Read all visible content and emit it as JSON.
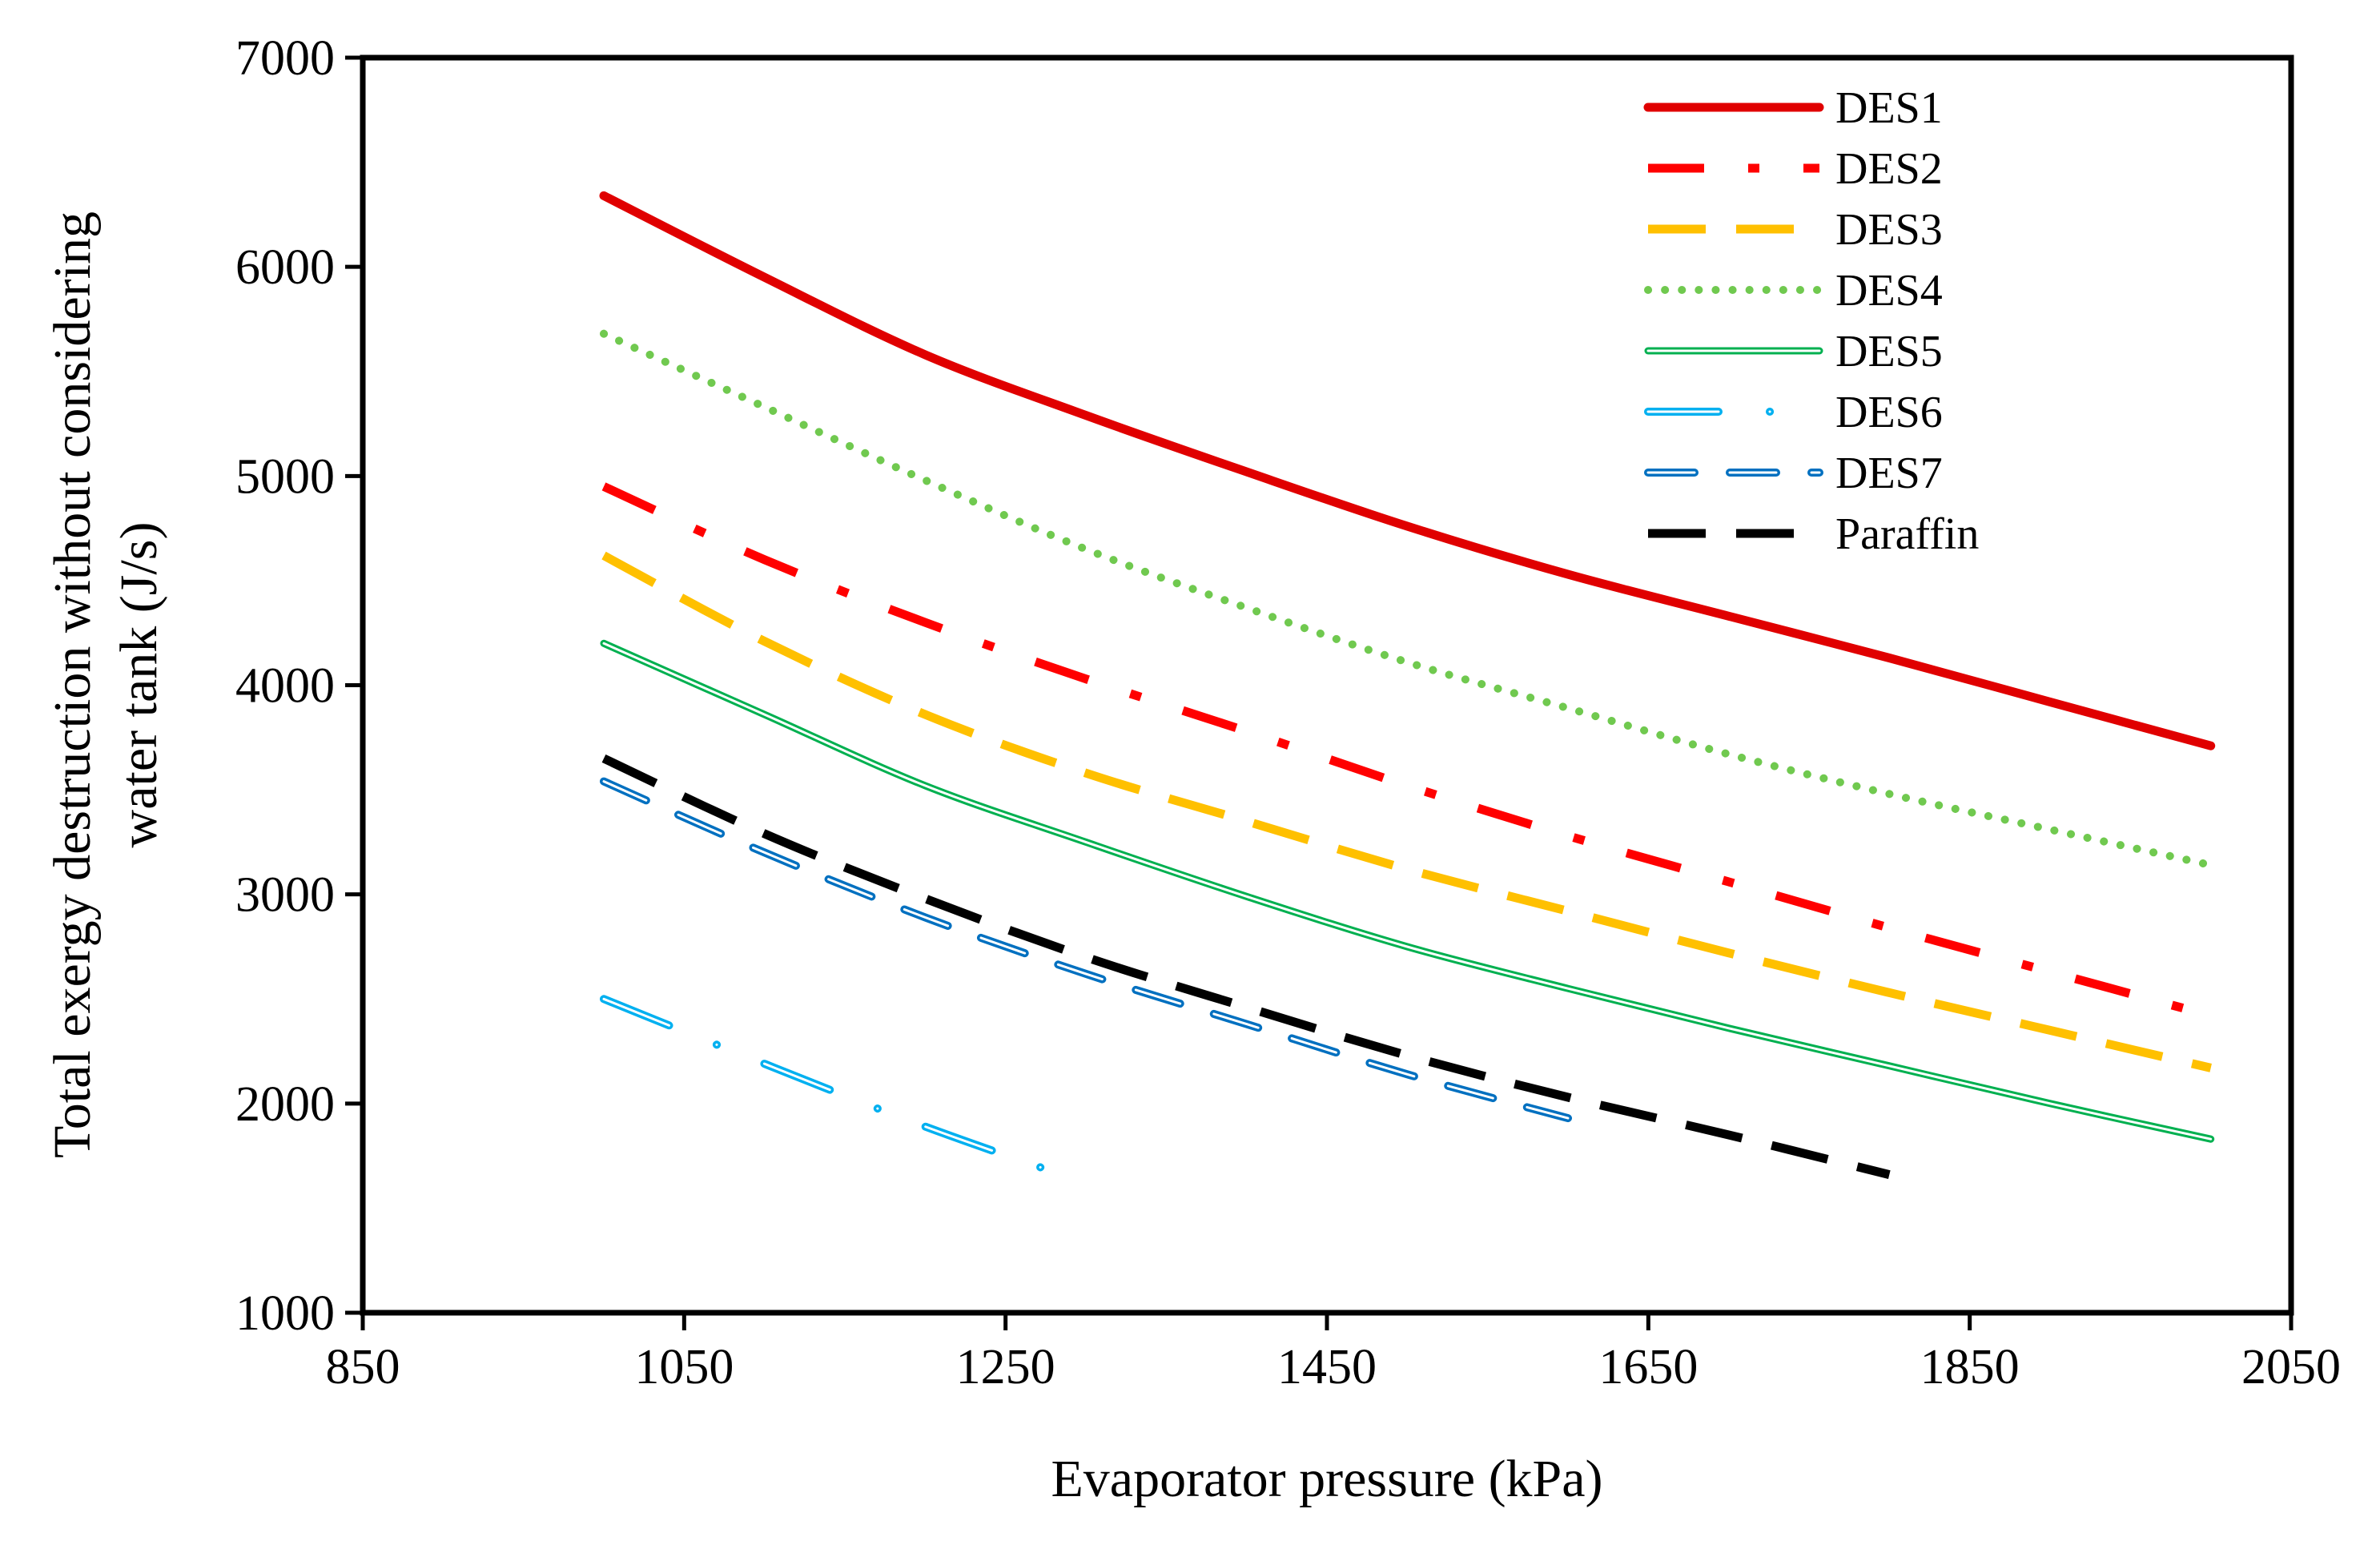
{
  "chart_data": {
    "type": "line",
    "title": "",
    "xlabel": "Evaporator pressure (kPa)",
    "ylabel_lines": [
      "Total exergy destruction without considering",
      "water tank (J/s)"
    ],
    "xlim": [
      850,
      2050
    ],
    "ylim": [
      1000,
      7000
    ],
    "xticks": [
      850,
      1050,
      1250,
      1450,
      1650,
      1850,
      2050
    ],
    "yticks": [
      1000,
      2000,
      3000,
      4000,
      5000,
      6000,
      7000
    ],
    "grid": false,
    "legend_position": "top-right",
    "series": [
      {
        "name": "DES1",
        "color": "#e00000",
        "style": "solid-thick",
        "x": [
          1000,
          1100,
          1200,
          1300,
          1400,
          1500,
          1600,
          1700,
          1800,
          1900,
          2000
        ],
        "y": [
          6340,
          5950,
          5580,
          5290,
          5020,
          4760,
          4530,
          4330,
          4130,
          3920,
          3710
        ]
      },
      {
        "name": "DES2",
        "color": "#ff0000",
        "style": "dash-dot",
        "x": [
          1000,
          1100,
          1200,
          1300,
          1400,
          1500,
          1600,
          1700,
          1800,
          1900,
          2000
        ],
        "y": [
          4950,
          4600,
          4300,
          4030,
          3780,
          3520,
          3280,
          3060,
          2840,
          2630,
          2420
        ]
      },
      {
        "name": "DES3",
        "color": "#ffc000",
        "style": "dash",
        "x": [
          1000,
          1100,
          1200,
          1300,
          1400,
          1500,
          1600,
          1700,
          1800,
          1900,
          2000
        ],
        "y": [
          4620,
          4210,
          3860,
          3580,
          3350,
          3120,
          2920,
          2720,
          2530,
          2350,
          2170
        ]
      },
      {
        "name": "DES4",
        "color": "#70c94f",
        "style": "dot",
        "x": [
          1000,
          1100,
          1200,
          1300,
          1400,
          1500,
          1600,
          1700,
          1800,
          1900,
          2000
        ],
        "y": [
          5680,
          5330,
          4980,
          4650,
          4370,
          4110,
          3890,
          3670,
          3480,
          3310,
          3140
        ]
      },
      {
        "name": "DES5",
        "color": "#00b050",
        "style": "double",
        "x": [
          1000,
          1100,
          1200,
          1300,
          1400,
          1500,
          1600,
          1700,
          1800,
          1900,
          2000
        ],
        "y": [
          4200,
          3860,
          3520,
          3250,
          2990,
          2750,
          2550,
          2360,
          2180,
          2000,
          1830
        ]
      },
      {
        "name": "DES6",
        "color": "#00b0f0",
        "style": "double-dash-dot",
        "x": [
          1000,
          1100,
          1200,
          1300
        ],
        "y": [
          2500,
          2190,
          1890,
          1620
        ]
      },
      {
        "name": "DES7",
        "color": "#0070c0",
        "style": "double-dash",
        "x": [
          1000,
          1100,
          1200,
          1300,
          1400,
          1500,
          1600
        ],
        "y": [
          3540,
          3200,
          2890,
          2620,
          2380,
          2140,
          1930
        ]
      },
      {
        "name": "Paraffin",
        "color": "#000000",
        "style": "dash",
        "x": [
          1000,
          1100,
          1200,
          1300,
          1400,
          1500,
          1600,
          1700,
          1800
        ],
        "y": [
          3650,
          3290,
          2980,
          2700,
          2460,
          2230,
          2030,
          1850,
          1660
        ]
      }
    ]
  }
}
